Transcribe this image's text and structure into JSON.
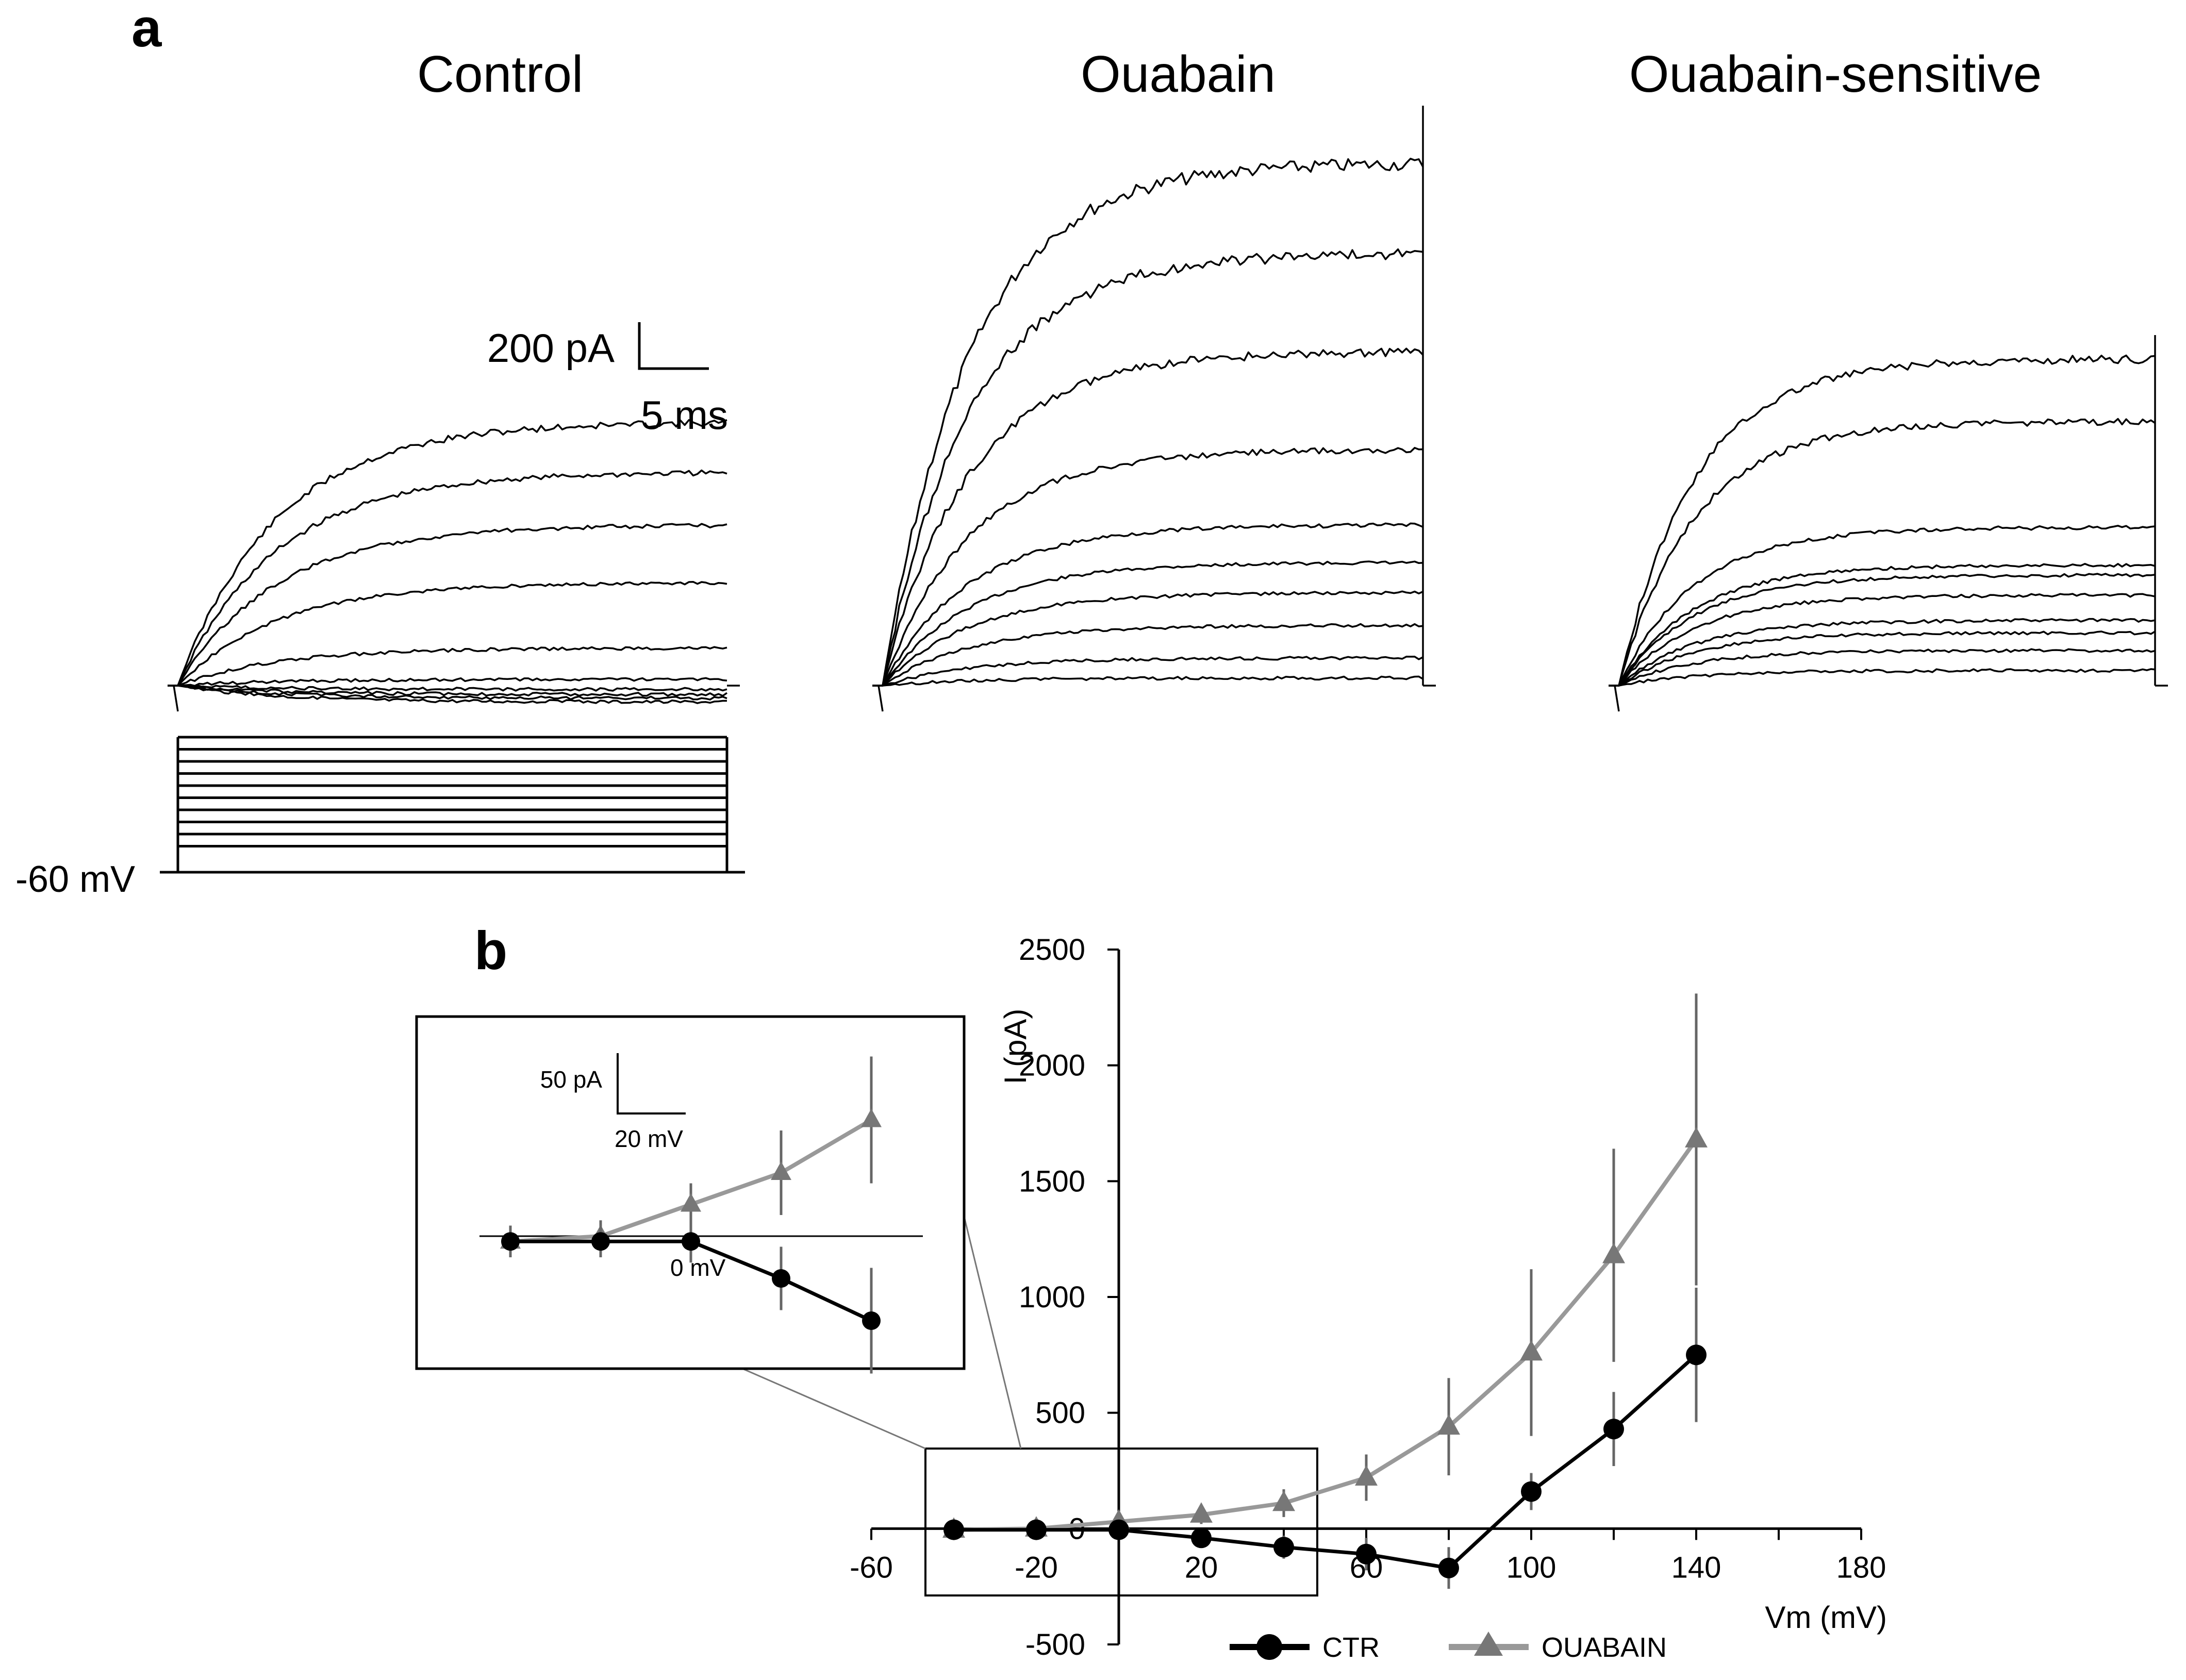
{
  "panel_a": {
    "letter": "a",
    "titles": [
      "Control",
      "Ouabain",
      "Ouabain-sensitive"
    ],
    "scale_current": "200 pA",
    "scale_time": "5 ms",
    "holding_potential": "-60 mV",
    "voltage_steps_count": 10,
    "traces": {
      "control": [
        1050,
        850,
        640,
        410,
        150,
        25,
        -15,
        -35,
        -50,
        -65
      ],
      "ouabain": [
        2080,
        1720,
        1330,
        940,
        640,
        490,
        370,
        240,
        110,
        30
      ],
      "ouabain_sensitive": [
        1300,
        1050,
        630,
        480,
        440,
        360,
        260,
        210,
        140,
        60
      ]
    }
  },
  "panel_b": {
    "letter": "b",
    "legend": [
      "CTR",
      "OUABAIN"
    ],
    "inset": {
      "scale_current": "50 pA",
      "scale_voltage": "20 mV",
      "zero_label": "0 mV"
    }
  },
  "chart_data": {
    "type": "line",
    "xlabel": "Vm (mV)",
    "ylabel": "I (pA)",
    "xlim": [
      -60,
      180
    ],
    "ylim": [
      -500,
      2500
    ],
    "xticks": [
      "-60",
      "-20",
      "20",
      "60",
      "100",
      "140",
      "180"
    ],
    "yticks": [
      "2500",
      "2000",
      "1500",
      "1000",
      "500",
      "0",
      "-500"
    ],
    "zero_tick_label": "0",
    "x": [
      -40,
      -20,
      0,
      20,
      40,
      60,
      80,
      100,
      120,
      140
    ],
    "series": [
      {
        "name": "CTR",
        "color": "#000000",
        "marker": "circle",
        "values": [
          -5,
          -5,
          -5,
          -40,
          -80,
          -110,
          -170,
          160,
          430,
          750
        ],
        "errors": [
          15,
          15,
          20,
          30,
          50,
          70,
          90,
          80,
          160,
          290
        ]
      },
      {
        "name": "OUABAIN",
        "color": "#999999",
        "marker": "triangle",
        "values": [
          -5,
          0,
          30,
          60,
          110,
          220,
          440,
          760,
          1180,
          1680
        ],
        "errors": [
          15,
          15,
          20,
          40,
          60,
          100,
          210,
          360,
          460,
          630
        ]
      }
    ]
  }
}
